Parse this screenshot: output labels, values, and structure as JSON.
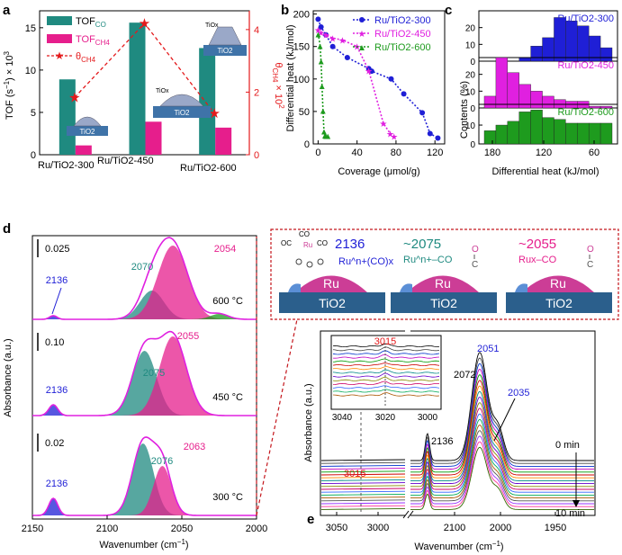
{
  "colors": {
    "teal": "#1f8a80",
    "pink": "#e61e8c",
    "red": "#e41a1c",
    "blue": "#1f1fd6",
    "magenta": "#e020e0",
    "green": "#1e9b1e",
    "tio2": "#2b5f8c",
    "ru": "#cc3d96",
    "support": "#3f73a8"
  },
  "panel_labels": {
    "a": "a",
    "b": "b",
    "c": "c",
    "d": "d",
    "e": "e"
  },
  "chart_data": [
    {
      "id": "a",
      "type": "bar",
      "categories": [
        "Ru/TiO2-300",
        "Ru/TiO2-450",
        "Ru/TiO2-600"
      ],
      "series": [
        {
          "name": "TOF_CO",
          "values": [
            8.9,
            15.6,
            12.6
          ]
        },
        {
          "name": "TOF_CH4",
          "values": [
            1.1,
            3.9,
            3.2
          ]
        }
      ],
      "theta": {
        "name": "θ_CH4",
        "values": [
          1.83,
          4.2,
          1.32
        ]
      },
      "ylabel": "TOF (s−1) × 10^3",
      "ylabel2": "θCH4 × 10^2",
      "ylim": [
        0,
        17
      ],
      "ylim2": [
        0,
        4.6
      ],
      "yticks": [
        0,
        5,
        10,
        15
      ],
      "y2ticks": [
        0,
        2,
        4
      ],
      "legend": [
        "TOFCO",
        "TOFCH4",
        "θCH4"
      ],
      "insets": [
        "TiO2",
        "TiO2",
        "TiO2",
        "TiOx",
        "TiOx"
      ]
    },
    {
      "id": "b",
      "type": "line",
      "xlabel": "Coverage (μmol/g)",
      "ylabel": "Differential heat (kJ/mol)",
      "xlim": [
        -5,
        130
      ],
      "ylim": [
        0,
        205
      ],
      "xticks": [
        0,
        40,
        80,
        120
      ],
      "yticks": [
        0,
        50,
        100,
        150,
        200
      ],
      "series": [
        {
          "name": "Ru/TiO2-300",
          "x": [
            0,
            3,
            8,
            15,
            30,
            52,
            55,
            75,
            88,
            107,
            115,
            123
          ],
          "y": [
            192,
            180,
            168,
            150,
            133,
            116,
            112,
            100,
            77,
            48,
            16,
            9
          ]
        },
        {
          "name": "Ru/TiO2-450",
          "x": [
            0,
            3,
            8,
            15,
            25,
            40,
            52,
            67,
            74,
            78
          ],
          "y": [
            176,
            172,
            168,
            163,
            160,
            150,
            113,
            32,
            16,
            12
          ]
        },
        {
          "name": "Ru/TiO2-600",
          "x": [
            0,
            2,
            3,
            4,
            5,
            6,
            7,
            8,
            10
          ],
          "y": [
            170,
            152,
            128,
            90,
            52,
            20,
            14,
            13,
            13
          ]
        }
      ]
    },
    {
      "id": "c",
      "type": "bar",
      "xlabel": "Differential heat (kJ/mol)",
      "ylabel": "Contents (%)",
      "xticks": [
        "180",
        "120",
        "60"
      ],
      "yticks": [
        0,
        10,
        20
      ],
      "bins": [
        195,
        180,
        165,
        150,
        135,
        120,
        105,
        90,
        75,
        60,
        45
      ],
      "series": [
        {
          "name": "Ru/TiO2-300",
          "values": [
            0,
            0,
            0,
            2,
            9,
            14,
            26,
            24,
            21,
            15,
            8
          ]
        },
        {
          "name": "Ru/TiO2-450",
          "values": [
            7,
            30,
            21,
            14,
            10,
            7,
            5,
            4,
            4,
            1,
            1
          ]
        },
        {
          "name": "Ru/TiO2-600",
          "values": [
            7,
            10,
            12,
            17,
            18,
            14,
            13,
            11,
            11,
            11,
            11
          ]
        }
      ]
    },
    {
      "id": "d",
      "type": "area",
      "xlabel": "Wavenumber (cm−1)",
      "ylabel": "Absorbance (a.u.)",
      "xlim": [
        2150,
        2000
      ],
      "xticks": [
        2150,
        2100,
        2050,
        2000
      ],
      "spectra": [
        {
          "temp": "600 °C",
          "scale": "0.025",
          "peaks": [
            "2136",
            "2070",
            "2054"
          ]
        },
        {
          "temp": "450 °C",
          "scale": "0.10",
          "peaks": [
            "2075",
            "2055",
            "2136"
          ]
        },
        {
          "temp": "300 °C",
          "scale": "0.02",
          "peaks": [
            "2076",
            "2063",
            "2136"
          ]
        }
      ]
    },
    {
      "id": "e",
      "type": "line",
      "xlabel": "Wavenumber (cm−1)",
      "ylabel": "Absorbance (a.u.)",
      "xticks": [
        "3050",
        "3000",
        "2100",
        "2000",
        "1950"
      ],
      "annotations": [
        "3015",
        "2136",
        "2072",
        "2051",
        "2035",
        "0 min",
        "10 min"
      ],
      "inset": {
        "xticks": [
          "3040",
          "3020",
          "3000"
        ],
        "label": "3015"
      }
    }
  ],
  "schematic": {
    "species": [
      {
        "wn": "2136",
        "formula": "Ru^n+(CO)x",
        "ligands": [
          "OC",
          "CO",
          "CO"
        ],
        "metal": "Ru",
        "ox": "O",
        "ox2": "O",
        "ox3": "O"
      },
      {
        "wn": "~2075",
        "formula": "Ru^n+–CO",
        "ligand": "C",
        "ox": "O"
      },
      {
        "wn": "~2055",
        "formula": "Rux–CO",
        "ligand": "C",
        "ox": "O"
      }
    ],
    "ru_label": "Ru",
    "support_label": "TiO2"
  }
}
